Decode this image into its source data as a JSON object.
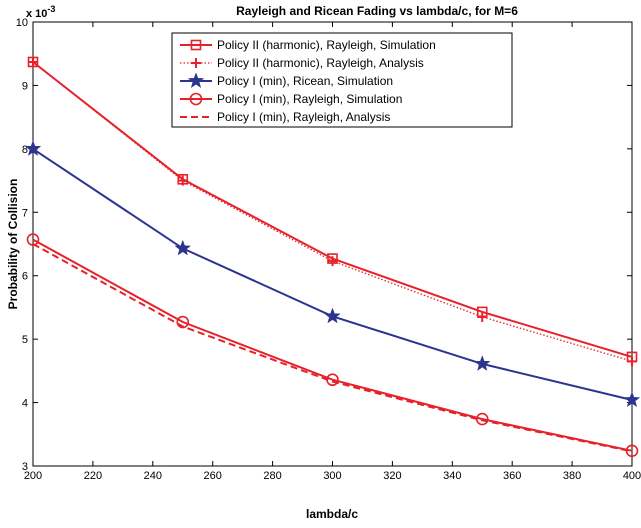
{
  "chart_data": {
    "type": "line",
    "title": "Rayleigh and Ricean Fading vs lambda/c, for M=6",
    "xlabel": "lambda/c",
    "ylabel": "Probability of Collision",
    "y_multiplier": "x 10",
    "y_exponent": "-3",
    "xlim": [
      200,
      400
    ],
    "ylim": [
      3,
      10
    ],
    "x_ticks": [
      "200",
      "220",
      "240",
      "260",
      "280",
      "300",
      "320",
      "340",
      "360",
      "380",
      "400"
    ],
    "y_ticks": [
      "3",
      "4",
      "5",
      "6",
      "7",
      "8",
      "9",
      "10"
    ],
    "grid": false,
    "legend_position": "top-center",
    "x": [
      200,
      250,
      300,
      350,
      400
    ],
    "series": [
      {
        "name": "Policy II (harmonic), Rayleigh, Simulation",
        "values": [
          9.37,
          7.52,
          6.27,
          5.43,
          4.72
        ],
        "color": "#e8202a",
        "line": "solid",
        "marker": "square"
      },
      {
        "name": "Policy II (harmonic), Rayleigh, Analysis",
        "values": [
          9.37,
          7.5,
          6.23,
          5.35,
          4.65
        ],
        "color": "#e8202a",
        "line": "dotted",
        "marker": "plus"
      },
      {
        "name": "Policy I (min), Ricean, Simulation",
        "values": [
          8.0,
          6.43,
          5.36,
          4.61,
          4.04
        ],
        "color": "#2b3590",
        "line": "solid",
        "marker": "star"
      },
      {
        "name": "Policy I (min), Rayleigh, Simulation",
        "values": [
          6.57,
          5.27,
          4.36,
          3.74,
          3.24
        ],
        "color": "#e8202a",
        "line": "solid",
        "marker": "circle"
      },
      {
        "name": "Policy I (min), Rayleigh, Analysis",
        "values": [
          6.5,
          5.2,
          4.33,
          3.72,
          3.23
        ],
        "color": "#e8202a",
        "line": "dashed",
        "marker": "none"
      }
    ]
  }
}
